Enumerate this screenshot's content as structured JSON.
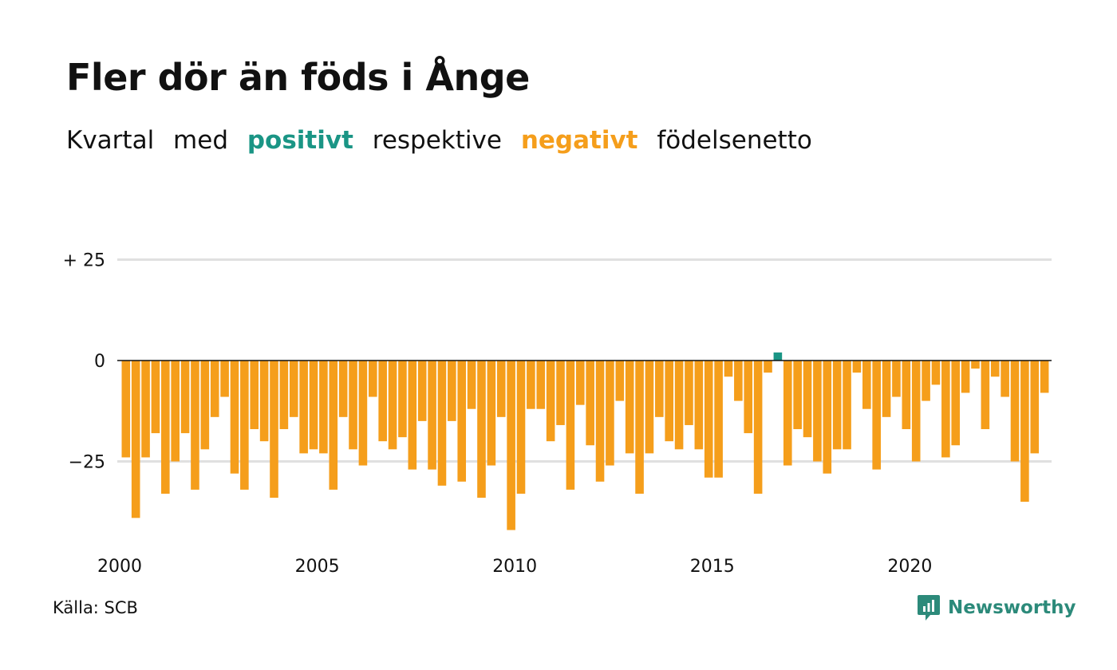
{
  "header": {
    "title": "Fler dör än föds i Ånge",
    "subtitle": {
      "part1": "Kvartal",
      "part2": "med",
      "positive_word": "positivt",
      "part3": "respektive",
      "negative_word": "negativt",
      "part4": "födelsenetto"
    }
  },
  "footer": {
    "source": "Källa: SCB",
    "brand": "Newsworthy"
  },
  "colors": {
    "positive": "#1a9585",
    "negative": "#f59e1b",
    "grid": "#e0e0e0",
    "zero_line": "#111111",
    "brand": "#2c8a7a"
  },
  "chart_data": {
    "type": "bar",
    "title": "Fler dör än föds i Ånge",
    "subtitle": "Kvartal med positivt respektive negativt födelsenetto",
    "xlabel": "",
    "ylabel": "",
    "ylim": [
      -45,
      35
    ],
    "y_ticks": [
      {
        "value": 25,
        "label": "+ 25"
      },
      {
        "value": 0,
        "label": "0"
      },
      {
        "value": -25,
        "label": "−25"
      }
    ],
    "x_ticks": [
      {
        "year": 2000,
        "label": "2000"
      },
      {
        "year": 2005,
        "label": "2005"
      },
      {
        "year": 2010,
        "label": "2010"
      },
      {
        "year": 2015,
        "label": "2015"
      },
      {
        "year": 2020,
        "label": "2020"
      }
    ],
    "start_year": 2000,
    "start_quarter": 1,
    "grid": true,
    "values": [
      -24,
      -39,
      -24,
      -18,
      -33,
      -25,
      -18,
      -32,
      -22,
      -14,
      -9,
      -28,
      -32,
      -17,
      -20,
      -34,
      -17,
      -14,
      -23,
      -22,
      -23,
      -32,
      -14,
      -22,
      -26,
      -9,
      -20,
      -22,
      -19,
      -27,
      -15,
      -27,
      -31,
      -15,
      -30,
      -12,
      -34,
      -26,
      -14,
      -42,
      -33,
      -12,
      -12,
      -20,
      -16,
      -32,
      -11,
      -21,
      -30,
      -26,
      -10,
      -23,
      -33,
      -23,
      -14,
      -20,
      -22,
      -16,
      -22,
      -29,
      -29,
      -4,
      -10,
      -18,
      -33,
      -3,
      2,
      -26,
      -17,
      -19,
      -25,
      -28,
      -22,
      -22,
      -3,
      -12,
      -27,
      -14,
      -9,
      -17,
      -25,
      -10,
      -6,
      -24,
      -21,
      -8,
      -2,
      -17,
      -4,
      -9,
      -25,
      -35,
      -23,
      -8
    ]
  }
}
